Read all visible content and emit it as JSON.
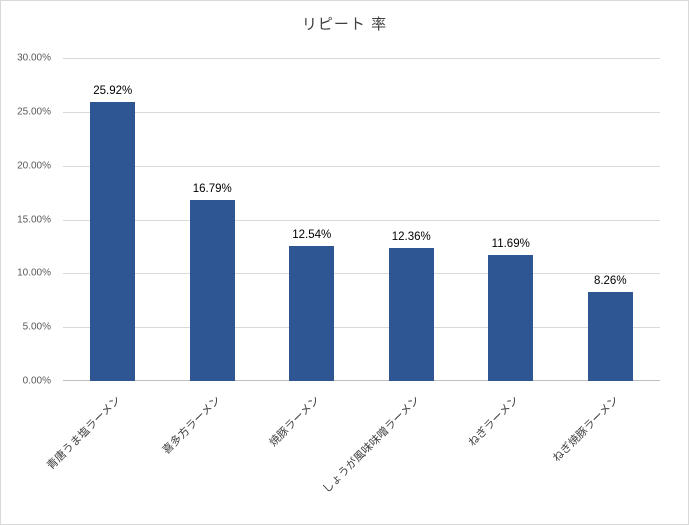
{
  "chart_data": {
    "type": "bar",
    "title": "リピート 率",
    "categories": [
      "青唐うま塩ラーメン",
      "喜多方ラーメン",
      "焼豚ラーメン",
      "しょうが風味味噌ラーメン",
      "ねぎラーメン",
      "ねぎ焼豚ラーメン"
    ],
    "values": [
      25.92,
      16.79,
      12.54,
      12.36,
      11.69,
      8.26
    ],
    "data_labels": [
      "25.92%",
      "16.79%",
      "12.54%",
      "12.36%",
      "11.69%",
      "8.26%"
    ],
    "xlabel": "",
    "ylabel": "",
    "ylim": [
      0,
      30
    ],
    "ytick_step": 5,
    "ytick_labels": [
      "0.00%",
      "5.00%",
      "10.00%",
      "15.00%",
      "20.00%",
      "25.00%",
      "30.00%"
    ],
    "grid": true,
    "legend": "none",
    "bar_color": "#2e5693",
    "gridline_color": "#d9d9d9",
    "axis_line_color": "#bfbfbf",
    "tick_label_color": "#595959"
  }
}
